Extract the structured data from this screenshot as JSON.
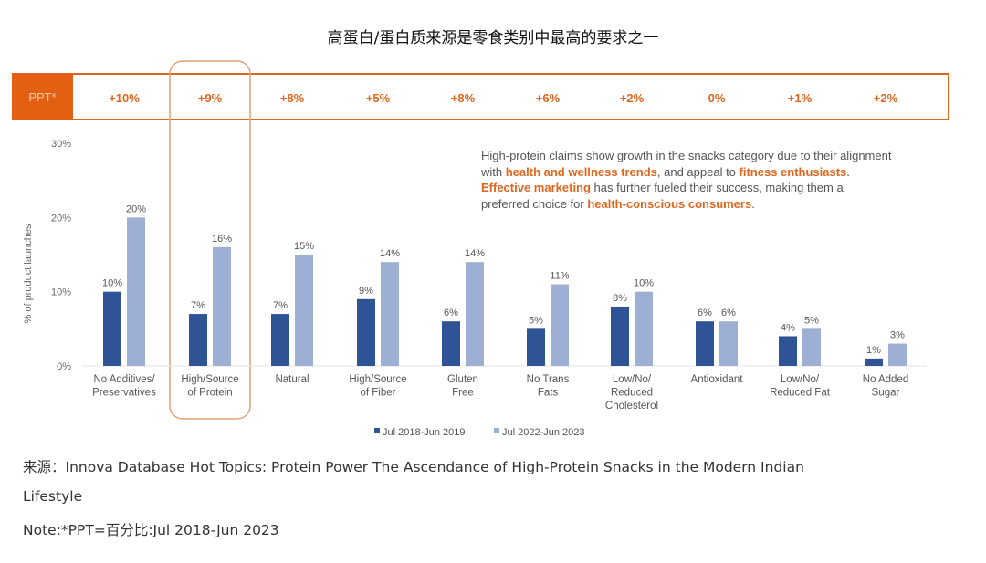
{
  "title": "高蛋白/蛋白质来源是零食类别中最高的要求之一",
  "ppt": {
    "label": "PPT*",
    "values": [
      "+10%",
      "+9%",
      "+8%",
      "+5%",
      "+8%",
      "+6%",
      "+2%",
      "0%",
      "+1%",
      "+2%"
    ]
  },
  "callout": {
    "parts": [
      {
        "text": "High-protein claims show growth in the snacks category due to their alignment with ",
        "bold": false
      },
      {
        "text": "health and wellness trends",
        "bold": true
      },
      {
        "text": ", and appeal to ",
        "bold": false
      },
      {
        "text": "fitness enthusiasts",
        "bold": true
      },
      {
        "text": ". ",
        "bold": false
      },
      {
        "text": "Effective marketing",
        "bold": true
      },
      {
        "text": " has further fueled their success, making them a preferred choice for ",
        "bold": false
      },
      {
        "text": "health-conscious consumers",
        "bold": true
      },
      {
        "text": ".",
        "bold": false
      }
    ]
  },
  "chart_data": {
    "type": "bar",
    "title": "",
    "xlabel": "",
    "ylabel": "% of product launches",
    "ylim": [
      0,
      30
    ],
    "yticks": [
      "0%",
      "10%",
      "20%",
      "30%"
    ],
    "grid": false,
    "legend_position": "bottom",
    "highlighted_category": "High/Source of Protein",
    "categories": [
      [
        "No Additives/",
        "Preservatives"
      ],
      [
        "High/Source",
        "of Protein"
      ],
      [
        "Natural"
      ],
      [
        "High/Source",
        "of Fiber"
      ],
      [
        "Gluten",
        "Free"
      ],
      [
        "No Trans",
        "Fats"
      ],
      [
        "Low/No/",
        "Reduced",
        "Cholesterol"
      ],
      [
        "Antioxidant"
      ],
      [
        "Low/No/",
        "Reduced Fat"
      ],
      [
        "No Added",
        "Sugar"
      ]
    ],
    "series": [
      {
        "name": "Jul 2018-Jun 2019",
        "color": "#2f5496",
        "values": [
          10,
          7,
          7,
          9,
          6,
          5,
          8,
          6,
          4,
          1
        ]
      },
      {
        "name": "Jul 2022-Jun 2023",
        "color": "#9dafd3",
        "values": [
          20,
          16,
          15,
          14,
          14,
          11,
          10,
          6,
          5,
          3
        ]
      }
    ]
  },
  "colors": {
    "accent": "#e35f12"
  },
  "footer": {
    "source_line1": "来源：Innova Database Hot Topics: Protein Power The Ascendance of High-Protein Snacks in the Modern Indian",
    "source_line2": "Lifestyle",
    "note": "Note:*PPT=百分比:Jul 2018-Jun 2023"
  }
}
